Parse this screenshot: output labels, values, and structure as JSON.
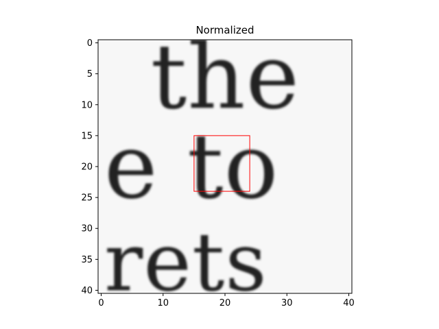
{
  "chart_data": {
    "type": "heatmap",
    "title": "Normalized",
    "xlabel": "",
    "ylabel": "",
    "colormap": "grayscale",
    "image_size": [
      41,
      41
    ],
    "xlim": [
      -0.5,
      40.5
    ],
    "ylim": [
      40.5,
      -0.5
    ],
    "x_ticks": [
      0,
      10,
      20,
      30,
      40
    ],
    "y_ticks": [
      0,
      5,
      10,
      15,
      20,
      25,
      30,
      35,
      40
    ],
    "grid": false,
    "legend": "none",
    "text_rows": [
      {
        "text": "the",
        "x_start": 8,
        "baseline_y": 10.5,
        "cap_height": 10
      },
      {
        "text": "e to",
        "x_start": 0.5,
        "baseline_y": 25,
        "cap_height": 10
      },
      {
        "text": "rets",
        "x_start": 0.5,
        "baseline_y": 40,
        "cap_height": 9
      }
    ],
    "highlight_box": {
      "x0": 15,
      "y0": 15,
      "x1": 24,
      "y1": 24,
      "color": "#ff0000"
    }
  }
}
